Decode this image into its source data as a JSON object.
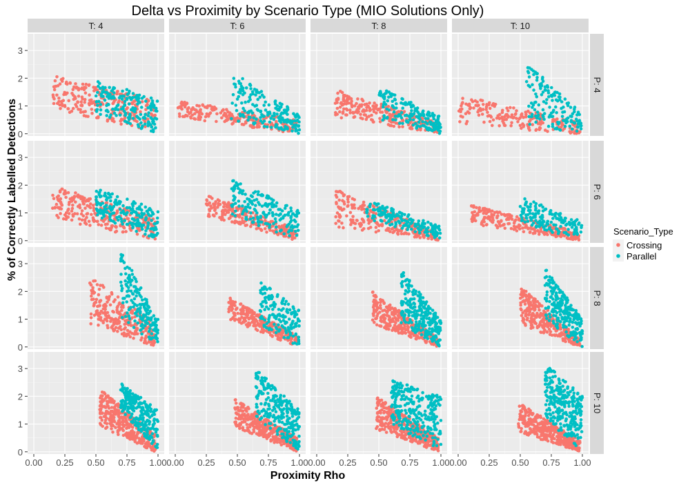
{
  "chart_data": {
    "type": "scatter",
    "title": "Delta vs Proximity by Scenario Type (MIO Solutions Only)",
    "xlabel": "Proximity Rho",
    "ylabel": "% of Correctly Labelled Detections",
    "xlim": [
      -0.05,
      1.05
    ],
    "ylim": [
      -0.08,
      3.6
    ],
    "x_ticks": [
      0.0,
      0.25,
      0.5,
      0.75,
      1.0
    ],
    "x_tick_labels": [
      "0.00",
      "0.25",
      "0.50",
      "0.75",
      "1.00"
    ],
    "y_ticks": [
      0,
      1,
      2,
      3
    ],
    "y_tick_labels": [
      "0",
      "1",
      "2",
      "3"
    ],
    "grid": true,
    "facet_cols": [
      "T: 4",
      "T: 6",
      "T: 8",
      "T: 10"
    ],
    "facet_rows": [
      "P: 4",
      "P: 6",
      "P: 8",
      "P: 10"
    ],
    "legend": {
      "title": "Scenario_Type",
      "position": "right",
      "entries": [
        {
          "name": "Crossing",
          "color": "#F8766D"
        },
        {
          "name": "Parallel",
          "color": "#00BFC4"
        }
      ]
    },
    "series": [
      {
        "name": "Crossing",
        "color": "#F8766D"
      },
      {
        "name": "Parallel",
        "color": "#00BFC4"
      }
    ],
    "panels": [
      {
        "row": 0,
        "col": 0,
        "clusters": [
          {
            "series": "Crossing",
            "xmin": 0.15,
            "xmax": 0.98,
            "ytop_l": 2.1,
            "ytop_r": 1.2,
            "ybot_l": 0.9,
            "ybot_r": 0.05,
            "n": 260
          },
          {
            "series": "Parallel",
            "xmin": 0.5,
            "xmax": 1.0,
            "ytop_l": 2.0,
            "ytop_r": 1.2,
            "ybot_l": 0.7,
            "ybot_r": 0.0,
            "n": 180
          }
        ]
      },
      {
        "row": 0,
        "col": 1,
        "clusters": [
          {
            "series": "Crossing",
            "xmin": 0.02,
            "xmax": 0.98,
            "ytop_l": 1.2,
            "ytop_r": 0.5,
            "ybot_l": 0.6,
            "ybot_r": 0.0,
            "n": 230
          },
          {
            "series": "Parallel",
            "xmin": 0.45,
            "xmax": 1.0,
            "ytop_l": 2.25,
            "ytop_r": 0.7,
            "ybot_l": 0.5,
            "ybot_r": 0.0,
            "n": 190
          }
        ]
      },
      {
        "row": 0,
        "col": 2,
        "clusters": [
          {
            "series": "Crossing",
            "xmin": 0.15,
            "xmax": 0.98,
            "ytop_l": 1.6,
            "ytop_r": 0.4,
            "ybot_l": 0.6,
            "ybot_r": 0.0,
            "n": 240
          },
          {
            "series": "Parallel",
            "xmin": 0.5,
            "xmax": 1.0,
            "ytop_l": 1.7,
            "ytop_r": 0.6,
            "ybot_l": 0.5,
            "ybot_r": 0.0,
            "n": 170
          }
        ]
      },
      {
        "row": 0,
        "col": 3,
        "clusters": [
          {
            "series": "Crossing",
            "xmin": 0.0,
            "xmax": 0.98,
            "ytop_l": 1.4,
            "ytop_r": 0.4,
            "ybot_l": 0.3,
            "ybot_r": 0.0,
            "n": 200
          },
          {
            "series": "Parallel",
            "xmin": 0.55,
            "xmax": 1.0,
            "ytop_l": 2.6,
            "ytop_r": 0.7,
            "ybot_l": 0.3,
            "ybot_r": 0.0,
            "n": 150
          }
        ]
      },
      {
        "row": 1,
        "col": 0,
        "clusters": [
          {
            "series": "Crossing",
            "xmin": 0.15,
            "xmax": 0.98,
            "ytop_l": 2.0,
            "ytop_r": 0.8,
            "ybot_l": 0.8,
            "ybot_r": 0.0,
            "n": 270
          },
          {
            "series": "Parallel",
            "xmin": 0.5,
            "xmax": 1.0,
            "ytop_l": 1.9,
            "ytop_r": 1.1,
            "ybot_l": 0.9,
            "ybot_r": 0.0,
            "n": 200
          }
        ]
      },
      {
        "row": 1,
        "col": 1,
        "clusters": [
          {
            "series": "Crossing",
            "xmin": 0.25,
            "xmax": 0.98,
            "ytop_l": 1.7,
            "ytop_r": 0.4,
            "ybot_l": 0.9,
            "ybot_r": 0.0,
            "n": 240
          },
          {
            "series": "Parallel",
            "xmin": 0.45,
            "xmax": 1.0,
            "ytop_l": 2.2,
            "ytop_r": 1.1,
            "ybot_l": 0.9,
            "ybot_r": 0.0,
            "n": 190
          }
        ]
      },
      {
        "row": 1,
        "col": 2,
        "clusters": [
          {
            "series": "Crossing",
            "xmin": 0.15,
            "xmax": 0.98,
            "ytop_l": 1.85,
            "ytop_r": 0.3,
            "ybot_l": 0.5,
            "ybot_r": 0.0,
            "n": 250
          },
          {
            "series": "Parallel",
            "xmin": 0.4,
            "xmax": 1.0,
            "ytop_l": 1.5,
            "ytop_r": 0.5,
            "ybot_l": 0.8,
            "ybot_r": 0.0,
            "n": 170
          }
        ]
      },
      {
        "row": 1,
        "col": 3,
        "clusters": [
          {
            "series": "Crossing",
            "xmin": 0.1,
            "xmax": 0.98,
            "ytop_l": 1.3,
            "ytop_r": 0.3,
            "ybot_l": 0.6,
            "ybot_r": 0.0,
            "n": 240
          },
          {
            "series": "Parallel",
            "xmin": 0.5,
            "xmax": 1.0,
            "ytop_l": 1.6,
            "ytop_r": 0.7,
            "ybot_l": 0.6,
            "ybot_r": 0.0,
            "n": 160
          }
        ]
      },
      {
        "row": 2,
        "col": 0,
        "clusters": [
          {
            "series": "Crossing",
            "xmin": 0.45,
            "xmax": 0.98,
            "ytop_l": 2.6,
            "ytop_r": 0.8,
            "ybot_l": 0.8,
            "ybot_r": 0.0,
            "n": 260
          },
          {
            "series": "Parallel",
            "xmin": 0.7,
            "xmax": 1.0,
            "ytop_l": 3.5,
            "ytop_r": 1.0,
            "ybot_l": 1.0,
            "ybot_r": 0.0,
            "n": 180
          }
        ]
      },
      {
        "row": 2,
        "col": 1,
        "clusters": [
          {
            "series": "Crossing",
            "xmin": 0.43,
            "xmax": 0.98,
            "ytop_l": 1.8,
            "ytop_r": 0.4,
            "ybot_l": 1.0,
            "ybot_r": 0.0,
            "n": 260
          },
          {
            "series": "Parallel",
            "xmin": 0.68,
            "xmax": 1.0,
            "ytop_l": 2.4,
            "ytop_r": 1.3,
            "ybot_l": 0.8,
            "ybot_r": 0.0,
            "n": 160
          }
        ]
      },
      {
        "row": 2,
        "col": 2,
        "clusters": [
          {
            "series": "Crossing",
            "xmin": 0.45,
            "xmax": 0.98,
            "ytop_l": 2.0,
            "ytop_r": 0.3,
            "ybot_l": 0.8,
            "ybot_r": 0.0,
            "n": 320
          },
          {
            "series": "Parallel",
            "xmin": 0.68,
            "xmax": 1.0,
            "ytop_l": 2.8,
            "ytop_r": 1.0,
            "ybot_l": 0.8,
            "ybot_r": 0.0,
            "n": 260
          }
        ]
      },
      {
        "row": 2,
        "col": 3,
        "clusters": [
          {
            "series": "Crossing",
            "xmin": 0.5,
            "xmax": 0.98,
            "ytop_l": 2.2,
            "ytop_r": 0.3,
            "ybot_l": 0.8,
            "ybot_r": 0.0,
            "n": 320
          },
          {
            "series": "Parallel",
            "xmin": 0.7,
            "xmax": 1.0,
            "ytop_l": 2.9,
            "ytop_r": 1.0,
            "ybot_l": 1.0,
            "ybot_r": 0.0,
            "n": 230
          }
        ]
      },
      {
        "row": 3,
        "col": 0,
        "clusters": [
          {
            "series": "Crossing",
            "xmin": 0.53,
            "xmax": 0.98,
            "ytop_l": 2.3,
            "ytop_r": 0.6,
            "ybot_l": 0.9,
            "ybot_r": 0.0,
            "n": 330
          },
          {
            "series": "Parallel",
            "xmin": 0.7,
            "xmax": 1.0,
            "ytop_l": 2.5,
            "ytop_r": 1.5,
            "ybot_l": 1.5,
            "ybot_r": 0.0,
            "n": 240
          }
        ]
      },
      {
        "row": 3,
        "col": 1,
        "clusters": [
          {
            "series": "Crossing",
            "xmin": 0.48,
            "xmax": 0.98,
            "ytop_l": 1.9,
            "ytop_r": 0.5,
            "ybot_l": 0.9,
            "ybot_r": 0.0,
            "n": 340
          },
          {
            "series": "Parallel",
            "xmin": 0.65,
            "xmax": 1.0,
            "ytop_l": 3.0,
            "ytop_r": 1.5,
            "ybot_l": 1.2,
            "ybot_r": 0.0,
            "n": 260
          }
        ]
      },
      {
        "row": 3,
        "col": 2,
        "clusters": [
          {
            "series": "Crossing",
            "xmin": 0.48,
            "xmax": 0.98,
            "ytop_l": 2.0,
            "ytop_r": 0.5,
            "ybot_l": 0.8,
            "ybot_r": 0.0,
            "n": 360
          },
          {
            "series": "Parallel",
            "xmin": 0.6,
            "xmax": 1.0,
            "ytop_l": 2.6,
            "ytop_r": 2.0,
            "ybot_l": 1.0,
            "ybot_r": 0.0,
            "n": 290
          }
        ]
      },
      {
        "row": 3,
        "col": 3,
        "clusters": [
          {
            "series": "Crossing",
            "xmin": 0.48,
            "xmax": 0.98,
            "ytop_l": 1.8,
            "ytop_r": 0.4,
            "ybot_l": 0.7,
            "ybot_r": 0.0,
            "n": 360
          },
          {
            "series": "Parallel",
            "xmin": 0.7,
            "xmax": 1.0,
            "ytop_l": 3.2,
            "ytop_r": 2.0,
            "ybot_l": 1.2,
            "ybot_r": 0.0,
            "n": 280
          }
        ]
      }
    ]
  }
}
